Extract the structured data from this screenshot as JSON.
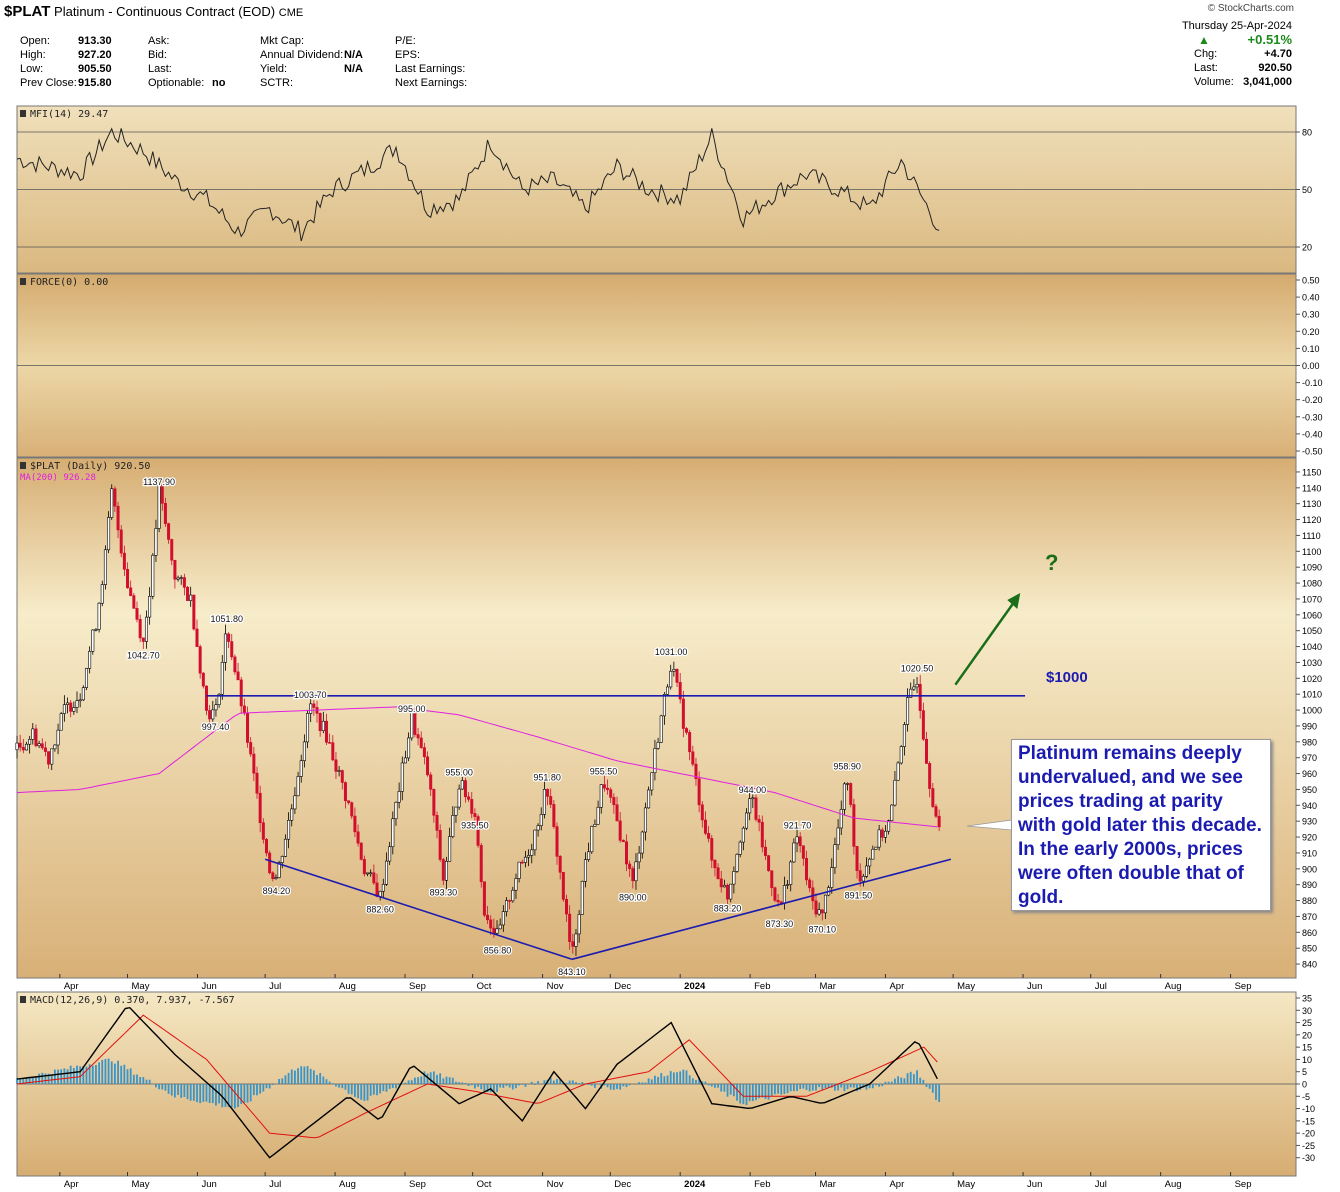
{
  "header": {
    "symbol": "$PLAT",
    "name": "Platinum - Continuous Contract (EOD)",
    "exchange": "CME",
    "brand": "© StockCharts.com",
    "date": "Thursday  25-Apr-2024",
    "change_pct": "+0.51%",
    "chg_label": "Chg:",
    "chg": "+4.70",
    "last_label": "Last:",
    "last": "920.50",
    "volume_label": "Volume:",
    "volume": "3,041,000",
    "col1": [
      {
        "label": "Open:",
        "value": "913.30"
      },
      {
        "label": "High:",
        "value": "927.20"
      },
      {
        "label": "Low:",
        "value": "905.50"
      },
      {
        "label": "Prev Close:",
        "value": "915.80"
      }
    ],
    "col2": [
      {
        "label": "Ask:",
        "value": ""
      },
      {
        "label": "Bid:",
        "value": ""
      },
      {
        "label": "Last:",
        "value": ""
      },
      {
        "label": "Optionable:",
        "value": "no"
      }
    ],
    "col3": [
      {
        "label": "Mkt Cap:",
        "value": ""
      },
      {
        "label": "Annual Dividend:",
        "value": "N/A"
      },
      {
        "label": "Yield:",
        "value": "N/A"
      },
      {
        "label": "SCTR:",
        "value": ""
      }
    ],
    "col4": [
      {
        "label": "P/E:"
      },
      {
        "label": "EPS:"
      },
      {
        "label": "Last Earnings:"
      },
      {
        "label": "Next Earnings:"
      }
    ]
  },
  "colors": {
    "bg_top": "#f5e8c4",
    "bg_bottom": "#d6ad72",
    "up": "#000000",
    "down": "#d10f2d",
    "ma": "#e020e0",
    "trend": "#1b1bb0",
    "arrow": "#1a6e1a",
    "macd_hist": "#3a94c8",
    "signal": "#e01010"
  },
  "chart_data": [
    {
      "type": "line",
      "title": "MFI(14) 29.47",
      "ylim": [
        20,
        80
      ],
      "ticks": [
        "80",
        "50",
        "20"
      ],
      "x": [
        "2023-03-13",
        "2023-03-27",
        "2023-04-10",
        "2023-04-24",
        "2023-05-08",
        "2023-05-22",
        "2023-06-05",
        "2023-06-19",
        "2023-07-03",
        "2023-07-17",
        "2023-07-31",
        "2023-08-14",
        "2023-08-28",
        "2023-09-11",
        "2023-09-25",
        "2023-10-09",
        "2023-10-23",
        "2023-11-06",
        "2023-11-20",
        "2023-12-04",
        "2023-12-18",
        "2024-01-01",
        "2024-01-15",
        "2024-01-29",
        "2024-02-12",
        "2024-02-26",
        "2024-03-11",
        "2024-03-25",
        "2024-04-08",
        "2024-04-25"
      ],
      "values": [
        66,
        62,
        58,
        80,
        70,
        55,
        45,
        28,
        40,
        28,
        50,
        60,
        72,
        40,
        45,
        75,
        50,
        55,
        40,
        62,
        50,
        45,
        78,
        35,
        48,
        58,
        50,
        40,
        65,
        29.47
      ]
    },
    {
      "type": "line",
      "title": "FORCE(0) 0.00",
      "ylim": [
        -0.5,
        0.5
      ],
      "ticks": [
        "0.50",
        "0.40",
        "0.30",
        "0.20",
        "0.10",
        "0.00",
        "-0.10",
        "-0.20",
        "-0.30",
        "-0.40",
        "-0.50"
      ],
      "values": []
    },
    {
      "type": "line",
      "title": "$PLAT (Daily) 920.50",
      "legend": "MA(200) 926.28",
      "ylim": [
        835,
        1155
      ],
      "ticks": [
        "1150",
        "1140",
        "1130",
        "1120",
        "1110",
        "1100",
        "1090",
        "1080",
        "1070",
        "1060",
        "1050",
        "1040",
        "1030",
        "1020",
        "1010",
        "1000",
        "990",
        "980",
        "970",
        "960",
        "950",
        "940",
        "930",
        "920",
        "910",
        "900",
        "890",
        "880",
        "870",
        "860",
        "850",
        "840"
      ],
      "x_labels": [
        "Apr",
        "May",
        "Jun",
        "Jul",
        "Aug",
        "Sep",
        "Oct",
        "Nov",
        "Dec",
        "2024",
        "Feb",
        "Mar",
        "Apr",
        "May",
        "Jun",
        "Jul",
        "Aug",
        "Sep"
      ],
      "price_path": [
        [
          "2023-03-13",
          975
        ],
        [
          "2023-03-20",
          985
        ],
        [
          "2023-03-27",
          970
        ],
        [
          "2023-04-03",
          1000
        ],
        [
          "2023-04-10",
          1010
        ],
        [
          "2023-04-17",
          1055
        ],
        [
          "2023-04-21",
          1095
        ],
        [
          "2023-04-24",
          1137
        ],
        [
          "2023-05-01",
          1080
        ],
        [
          "2023-05-08",
          1042.7
        ],
        [
          "2023-05-12",
          1090
        ],
        [
          "2023-05-15",
          1137.9
        ],
        [
          "2023-05-22",
          1085
        ],
        [
          "2023-05-29",
          1070
        ],
        [
          "2023-06-05",
          1000
        ],
        [
          "2023-06-09",
          997.4
        ],
        [
          "2023-06-14",
          1051.8
        ],
        [
          "2023-06-21",
          1000
        ],
        [
          "2023-06-28",
          940
        ],
        [
          "2023-07-03",
          900
        ],
        [
          "2023-07-06",
          894.2
        ],
        [
          "2023-07-13",
          940
        ],
        [
          "2023-07-21",
          1003.7
        ],
        [
          "2023-07-28",
          985
        ],
        [
          "2023-08-07",
          940
        ],
        [
          "2023-08-14",
          900
        ],
        [
          "2023-08-21",
          882.6
        ],
        [
          "2023-08-28",
          940
        ],
        [
          "2023-09-04",
          995
        ],
        [
          "2023-09-11",
          960
        ],
        [
          "2023-09-18",
          893.3
        ],
        [
          "2023-09-25",
          955
        ],
        [
          "2023-10-02",
          935.5
        ],
        [
          "2023-10-06",
          875
        ],
        [
          "2023-10-12",
          856.8
        ],
        [
          "2023-10-20",
          895
        ],
        [
          "2023-10-27",
          915
        ],
        [
          "2023-11-03",
          951.8
        ],
        [
          "2023-11-08",
          905
        ],
        [
          "2023-11-14",
          843.1
        ],
        [
          "2023-11-20",
          905
        ],
        [
          "2023-11-28",
          955.5
        ],
        [
          "2023-12-05",
          925
        ],
        [
          "2023-12-11",
          890
        ],
        [
          "2023-12-18",
          950
        ],
        [
          "2023-12-28",
          1031
        ],
        [
          "2024-01-05",
          975
        ],
        [
          "2024-01-15",
          905
        ],
        [
          "2024-01-22",
          883.2
        ],
        [
          "2024-01-29",
          930
        ],
        [
          "2024-02-02",
          944
        ],
        [
          "2024-02-08",
          905
        ],
        [
          "2024-02-14",
          873.3
        ],
        [
          "2024-02-22",
          921.7
        ],
        [
          "2024-02-28",
          880
        ],
        [
          "2024-03-04",
          870.1
        ],
        [
          "2024-03-11",
          925
        ],
        [
          "2024-03-15",
          958.9
        ],
        [
          "2024-03-20",
          891.5
        ],
        [
          "2024-03-27",
          915
        ],
        [
          "2024-04-03",
          930
        ],
        [
          "2024-04-10",
          1000
        ],
        [
          "2024-04-15",
          1020.5
        ],
        [
          "2024-04-20",
          960
        ],
        [
          "2024-04-25",
          920.5
        ]
      ],
      "ma200_path": [
        [
          "2023-03-13",
          948
        ],
        [
          "2023-04-10",
          950
        ],
        [
          "2023-05-15",
          960
        ],
        [
          "2023-06-19",
          998
        ],
        [
          "2023-07-24",
          1000
        ],
        [
          "2023-08-28",
          1002
        ],
        [
          "2023-09-25",
          997
        ],
        [
          "2023-10-30",
          983
        ],
        [
          "2023-12-04",
          968
        ],
        [
          "2024-01-08",
          958
        ],
        [
          "2024-02-12",
          948
        ],
        [
          "2024-03-18",
          932
        ],
        [
          "2024-04-25",
          926.28
        ]
      ],
      "annotations": [
        "1137.90",
        "1042.70",
        "1051.80",
        "997.40",
        "1003.70",
        "894.20",
        "882.60",
        "995.00",
        "893.30",
        "955.00",
        "935.50",
        "856.80",
        "951.80",
        "843.10",
        "955.50",
        "890.00",
        "1031.00",
        "883.20",
        "944.00",
        "921.70",
        "873.30",
        "870.10",
        "958.90",
        "891.50",
        "1020.50"
      ],
      "resistance": 1009,
      "resistance_label": "$1000",
      "support_lines": [
        [
          [
            "2023-07-01",
            906
          ],
          [
            "2023-11-14",
            843
          ]
        ],
        [
          [
            "2023-11-14",
            843
          ],
          [
            "2024-04-30",
            906
          ]
        ]
      ],
      "callout": [
        "Platinum remains deeply",
        "undervalued, and we see",
        "prices trading at parity",
        "with gold later this decade.",
        "In the early 2000s, prices",
        "were often double that of",
        "gold."
      ],
      "arrow_label": "?"
    },
    {
      "type": "line",
      "title": "MACD(12,26,9) 0.370, 7.937, -7.567",
      "ylim": [
        -35,
        35
      ],
      "ticks": [
        "35",
        "30",
        "25",
        "20",
        "15",
        "10",
        "5",
        "0",
        "-5",
        "-10",
        "-15",
        "-20",
        "-25",
        "-30"
      ],
      "x_labels": [
        "Apr",
        "May",
        "Jun",
        "Jul",
        "Aug",
        "Sep",
        "Oct",
        "Nov",
        "Dec",
        "2024",
        "Feb",
        "Mar",
        "Apr",
        "May",
        "Jun",
        "Jul",
        "Aug",
        "Sep"
      ],
      "macd": [
        [
          "2023-03-13",
          2
        ],
        [
          "2023-04-10",
          5
        ],
        [
          "2023-05-01",
          32
        ],
        [
          "2023-05-22",
          12
        ],
        [
          "2023-06-12",
          -5
        ],
        [
          "2023-07-03",
          -30
        ],
        [
          "2023-07-17",
          -20
        ],
        [
          "2023-08-07",
          -5
        ],
        [
          "2023-08-21",
          -15
        ],
        [
          "2023-09-04",
          8
        ],
        [
          "2023-09-25",
          -8
        ],
        [
          "2023-10-09",
          -2
        ],
        [
          "2023-10-23",
          -15
        ],
        [
          "2023-11-06",
          5
        ],
        [
          "2023-11-20",
          -10
        ],
        [
          "2023-12-04",
          8
        ],
        [
          "2023-12-28",
          25
        ],
        [
          "2024-01-15",
          -8
        ],
        [
          "2024-02-01",
          -10
        ],
        [
          "2024-02-19",
          -5
        ],
        [
          "2024-03-04",
          -8
        ],
        [
          "2024-03-25",
          0
        ],
        [
          "2024-04-15",
          18
        ],
        [
          "2024-04-25",
          0.37
        ]
      ],
      "signal": [
        [
          "2023-03-13",
          0
        ],
        [
          "2023-04-10",
          3
        ],
        [
          "2023-05-08",
          28
        ],
        [
          "2023-06-05",
          10
        ],
        [
          "2023-07-03",
          -20
        ],
        [
          "2023-07-24",
          -22
        ],
        [
          "2023-08-14",
          -12
        ],
        [
          "2023-09-11",
          0
        ],
        [
          "2023-10-02",
          -3
        ],
        [
          "2023-10-30",
          -8
        ],
        [
          "2023-11-20",
          0
        ],
        [
          "2023-12-18",
          5
        ],
        [
          "2024-01-05",
          18
        ],
        [
          "2024-01-29",
          -5
        ],
        [
          "2024-02-26",
          -5
        ],
        [
          "2024-03-25",
          5
        ],
        [
          "2024-04-18",
          15
        ],
        [
          "2024-04-25",
          7.937
        ]
      ],
      "hist": [
        [
          "2023-03-13",
          2
        ],
        [
          "2023-04-24",
          10
        ],
        [
          "2023-05-22",
          -5
        ],
        [
          "2023-06-19",
          -10
        ],
        [
          "2023-07-17",
          8
        ],
        [
          "2023-08-14",
          -7
        ],
        [
          "2023-09-11",
          5
        ],
        [
          "2023-10-09",
          -3
        ],
        [
          "2023-11-06",
          2
        ],
        [
          "2023-12-04",
          -2
        ],
        [
          "2024-01-01",
          6
        ],
        [
          "2024-01-29",
          -8
        ],
        [
          "2024-02-26",
          -2
        ],
        [
          "2024-03-25",
          -2
        ],
        [
          "2024-04-15",
          5
        ],
        [
          "2024-04-25",
          -7.567
        ]
      ]
    }
  ]
}
